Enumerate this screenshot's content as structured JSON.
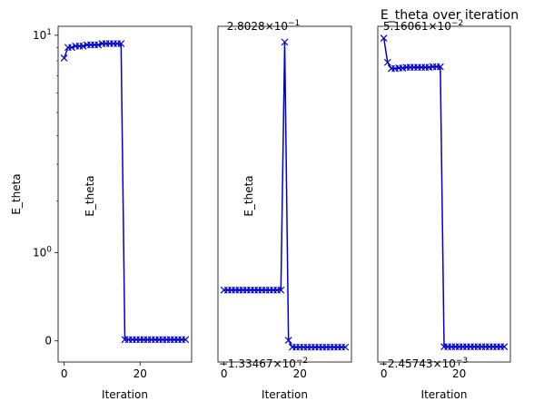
{
  "chart_data": [
    {
      "type": "line",
      "title": "",
      "xlabel": "Iteration",
      "ylabel": "E_theta",
      "yscale": "symlog",
      "xlim": [
        -1.6,
        33.6
      ],
      "ylim": [
        -0.18,
        10.8
      ],
      "xticks": [
        {
          "value": 0,
          "label": "0"
        },
        {
          "value": 20,
          "label": "20"
        }
      ],
      "yticks": [
        {
          "value": 0,
          "label": "0",
          "sup": ""
        },
        {
          "value": 1,
          "label": "10",
          "sup": "0"
        },
        {
          "value": 10,
          "label": "10",
          "sup": "1"
        }
      ],
      "series": [
        {
          "color": "#0000cc",
          "marker": "x",
          "x": [
            0,
            1,
            2,
            3,
            4,
            5,
            6,
            7,
            8,
            9,
            10,
            11,
            12,
            13,
            14,
            15,
            16,
            17,
            18,
            19,
            20,
            21,
            22,
            23,
            24,
            25,
            26,
            27,
            28,
            29,
            30,
            31,
            32
          ],
          "y": [
            8.2,
            9.0,
            9.0,
            9.1,
            9.1,
            9.1,
            9.2,
            9.2,
            9.2,
            9.2,
            9.3,
            9.3,
            9.3,
            9.3,
            9.3,
            9.3,
            0.01,
            0.01,
            0.01,
            0.01,
            0.01,
            0.01,
            0.01,
            0.01,
            0.01,
            0.01,
            0.01,
            0.01,
            0.01,
            0.01,
            0.01,
            0.01,
            0.01
          ]
        }
      ]
    },
    {
      "type": "line",
      "title": "",
      "xlabel": "Iteration",
      "ylabel": "E_theta",
      "top_label": {
        "mant": "2.8028",
        "base": "10",
        "exp": "−1"
      },
      "bottom_label": {
        "mant": "−1.33467",
        "base": "10",
        "exp": "−2"
      },
      "xticks": [
        {
          "value": 0,
          "label": "0"
        },
        {
          "value": 20,
          "label": "20"
        }
      ],
      "xlim": [
        -1.6,
        33.6
      ],
      "ylim": [
        -0.0135,
        0.2803
      ],
      "series": [
        {
          "color": "#0000cc",
          "marker": "x",
          "x": [
            0,
            1,
            2,
            3,
            4,
            5,
            6,
            7,
            8,
            9,
            10,
            11,
            12,
            13,
            14,
            15,
            16,
            17,
            18,
            19,
            20,
            21,
            22,
            23,
            24,
            25,
            26,
            27,
            28,
            29,
            30,
            31,
            32
          ],
          "y": [
            0.0495,
            0.0495,
            0.0495,
            0.0495,
            0.0495,
            0.0495,
            0.0495,
            0.0495,
            0.0495,
            0.0495,
            0.0495,
            0.0495,
            0.0495,
            0.0495,
            0.0495,
            0.0495,
            0.2665,
            0.0055,
            -0.0005,
            -0.0005,
            -0.0005,
            -0.0005,
            -0.0005,
            -0.0005,
            -0.0005,
            -0.0005,
            -0.0005,
            -0.0005,
            -0.0005,
            -0.0005,
            -0.0005,
            -0.0005,
            -0.0005
          ]
        }
      ]
    },
    {
      "type": "line",
      "title": "E_theta over iteration",
      "xlabel": "Iteration",
      "ylabel": "",
      "top_label": {
        "mant": "5.16061",
        "base": "10",
        "exp": "−2"
      },
      "bottom_label": {
        "mant": "−2.45743",
        "base": "10",
        "exp": "−3"
      },
      "xticks": [
        {
          "value": 0,
          "label": "0"
        },
        {
          "value": 20,
          "label": "20"
        }
      ],
      "xlim": [
        -1.6,
        33.6
      ],
      "ylim": [
        -0.00246,
        0.05161
      ],
      "series": [
        {
          "color": "#0000cc",
          "marker": "x",
          "x": [
            0,
            1,
            2,
            3,
            4,
            5,
            6,
            7,
            8,
            9,
            10,
            11,
            12,
            13,
            14,
            15,
            16,
            17,
            18,
            19,
            20,
            21,
            22,
            23,
            24,
            25,
            26,
            27,
            28,
            29,
            30,
            31,
            32
          ],
          "y": [
            0.0497,
            0.0458,
            0.0448,
            0.0448,
            0.0449,
            0.0449,
            0.045,
            0.045,
            0.045,
            0.045,
            0.045,
            0.045,
            0.045,
            0.0451,
            0.0451,
            0.0451,
            0.0,
            0.0,
            0.0,
            0.0,
            0.0,
            0.0,
            0.0,
            0.0,
            0.0,
            0.0,
            0.0,
            0.0,
            0.0,
            0.0,
            0.0,
            0.0,
            0.0
          ]
        }
      ]
    }
  ]
}
